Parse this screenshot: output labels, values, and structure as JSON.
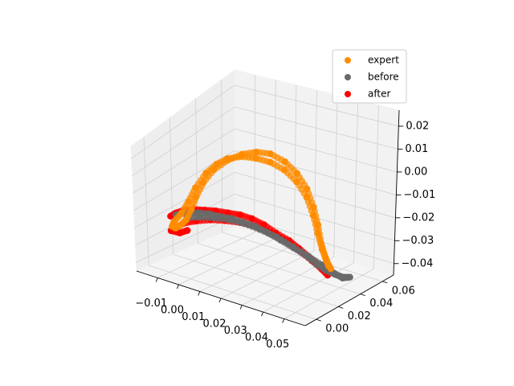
{
  "chart_data": {
    "type": "scatter",
    "projection": "3d",
    "title": "",
    "xlabel": "",
    "ylabel": "",
    "zlabel": "",
    "xlim": [
      -0.02,
      0.06
    ],
    "ylim": [
      -0.01,
      0.07
    ],
    "zlim": [
      -0.045,
      0.027
    ],
    "xticks": [
      -0.01,
      0.0,
      0.01,
      0.02,
      0.03,
      0.04,
      0.05
    ],
    "xtick_labels": [
      "−0.01",
      "0.00",
      "0.01",
      "0.02",
      "0.03",
      "0.04",
      "0.05"
    ],
    "yticks": [
      0.0,
      0.02,
      0.04,
      0.06
    ],
    "ytick_labels": [
      "0.00",
      "0.02",
      "0.04",
      "0.06"
    ],
    "zticks": [
      0.02,
      0.01,
      0.0,
      -0.01,
      -0.02,
      -0.03,
      -0.04
    ],
    "ztick_labels": [
      "0.02",
      "0.01",
      "0.00",
      "−0.01",
      "−0.02",
      "−0.03",
      "−0.04"
    ],
    "grid": true,
    "legend_position": "upper-right",
    "series": [
      {
        "name": "expert",
        "color": "#ff8c00",
        "points": [
          [
            0.047,
            0.037,
            -0.036
          ],
          [
            0.046,
            0.035,
            -0.032
          ],
          [
            0.045,
            0.033,
            -0.026
          ],
          [
            0.044,
            0.031,
            -0.018
          ],
          [
            0.043,
            0.029,
            -0.009
          ],
          [
            0.041,
            0.027,
            0.0
          ],
          [
            0.038,
            0.024,
            0.008
          ],
          [
            0.034,
            0.021,
            0.014
          ],
          [
            0.029,
            0.018,
            0.018
          ],
          [
            0.024,
            0.015,
            0.02
          ],
          [
            0.019,
            0.012,
            0.021
          ],
          [
            0.014,
            0.009,
            0.02
          ],
          [
            0.01,
            0.007,
            0.017
          ],
          [
            0.006,
            0.005,
            0.012
          ],
          [
            0.002,
            0.003,
            0.004
          ],
          [
            -0.001,
            0.002,
            -0.004
          ],
          [
            -0.004,
            0.001,
            -0.011
          ],
          [
            -0.007,
            0.0,
            -0.016
          ],
          [
            -0.008,
            0.0,
            -0.019
          ],
          [
            -0.007,
            0.001,
            -0.02
          ],
          [
            -0.005,
            0.002,
            -0.018
          ],
          [
            -0.003,
            0.003,
            -0.015
          ],
          [
            -0.001,
            0.004,
            -0.009
          ],
          [
            0.001,
            0.005,
            -0.002
          ],
          [
            0.004,
            0.006,
            0.006
          ],
          [
            0.008,
            0.008,
            0.013
          ],
          [
            0.013,
            0.011,
            0.018
          ],
          [
            0.018,
            0.014,
            0.021
          ],
          [
            0.023,
            0.017,
            0.022
          ],
          [
            0.028,
            0.02,
            0.021
          ],
          [
            0.033,
            0.023,
            0.017
          ],
          [
            0.037,
            0.026,
            0.011
          ],
          [
            0.04,
            0.029,
            0.003
          ],
          [
            0.042,
            0.031,
            -0.006
          ],
          [
            0.043,
            0.033,
            -0.015
          ],
          [
            0.044,
            0.034,
            -0.024
          ],
          [
            0.045,
            0.036,
            -0.031
          ],
          [
            0.046,
            0.037,
            -0.035
          ]
        ]
      },
      {
        "name": "before",
        "color": "#696969",
        "points": [
          [
            -0.006,
            0.0,
            -0.012
          ],
          [
            -0.004,
            0.001,
            -0.011
          ],
          [
            -0.001,
            0.002,
            -0.01
          ],
          [
            0.002,
            0.004,
            -0.01
          ],
          [
            0.006,
            0.006,
            -0.01
          ],
          [
            0.01,
            0.008,
            -0.011
          ],
          [
            0.014,
            0.011,
            -0.012
          ],
          [
            0.018,
            0.014,
            -0.014
          ],
          [
            0.022,
            0.017,
            -0.016
          ],
          [
            0.026,
            0.02,
            -0.019
          ],
          [
            0.03,
            0.024,
            -0.023
          ],
          [
            0.034,
            0.028,
            -0.027
          ],
          [
            0.038,
            0.032,
            -0.031
          ],
          [
            0.041,
            0.035,
            -0.035
          ],
          [
            0.044,
            0.038,
            -0.038
          ],
          [
            0.047,
            0.041,
            -0.04
          ],
          [
            0.05,
            0.043,
            -0.041
          ],
          [
            0.052,
            0.045,
            -0.041
          ],
          [
            0.049,
            0.044,
            -0.042
          ],
          [
            0.046,
            0.042,
            -0.04
          ],
          [
            0.042,
            0.038,
            -0.036
          ],
          [
            0.038,
            0.034,
            -0.032
          ],
          [
            0.033,
            0.029,
            -0.027
          ],
          [
            0.028,
            0.024,
            -0.022
          ],
          [
            0.023,
            0.019,
            -0.018
          ],
          [
            0.018,
            0.015,
            -0.015
          ],
          [
            0.013,
            0.011,
            -0.013
          ],
          [
            0.008,
            0.007,
            -0.012
          ],
          [
            0.003,
            0.004,
            -0.012
          ],
          [
            -0.002,
            0.002,
            -0.013
          ]
        ]
      },
      {
        "name": "after",
        "color": "#ff0000",
        "points": [
          [
            -0.008,
            -0.001,
            -0.013
          ],
          [
            -0.006,
            0.0,
            -0.011
          ],
          [
            -0.003,
            0.001,
            -0.009
          ],
          [
            0.001,
            0.003,
            -0.008
          ],
          [
            0.005,
            0.005,
            -0.008
          ],
          [
            0.009,
            0.007,
            -0.008
          ],
          [
            0.013,
            0.01,
            -0.009
          ],
          [
            0.017,
            0.013,
            -0.01
          ],
          [
            0.021,
            0.016,
            -0.012
          ],
          [
            0.025,
            0.019,
            -0.015
          ],
          [
            0.029,
            0.022,
            -0.019
          ],
          [
            0.033,
            0.026,
            -0.023
          ],
          [
            0.036,
            0.029,
            -0.027
          ],
          [
            0.039,
            0.032,
            -0.031
          ],
          [
            0.042,
            0.035,
            -0.035
          ],
          [
            0.044,
            0.037,
            -0.038
          ],
          [
            0.045,
            0.038,
            -0.04
          ],
          [
            0.043,
            0.036,
            -0.037
          ],
          [
            0.04,
            0.033,
            -0.033
          ],
          [
            0.036,
            0.029,
            -0.028
          ],
          [
            0.032,
            0.025,
            -0.023
          ],
          [
            0.027,
            0.021,
            -0.019
          ],
          [
            0.022,
            0.017,
            -0.016
          ],
          [
            0.017,
            0.013,
            -0.014
          ],
          [
            0.012,
            0.009,
            -0.013
          ],
          [
            0.007,
            0.006,
            -0.013
          ],
          [
            0.002,
            0.003,
            -0.014
          ],
          [
            -0.003,
            0.001,
            -0.016
          ],
          [
            -0.006,
            0.0,
            -0.019
          ],
          [
            -0.008,
            -0.001,
            -0.021
          ],
          [
            -0.005,
            0.001,
            -0.022
          ],
          [
            -0.002,
            0.002,
            -0.02
          ]
        ]
      }
    ]
  }
}
